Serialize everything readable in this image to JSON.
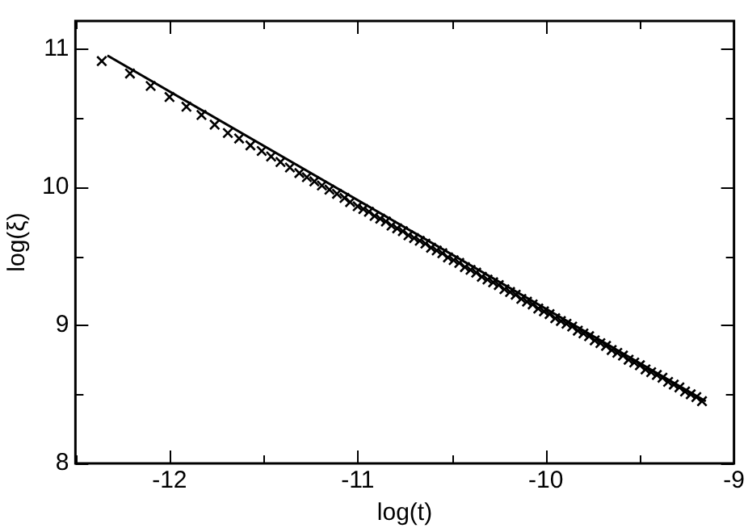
{
  "chart_data": {
    "type": "scatter",
    "xlabel": "log(t)",
    "ylabel": "log(ξ)",
    "xlim": [
      -12.5,
      -9
    ],
    "ylim": [
      8,
      11.2
    ],
    "xticks": [
      {
        "value": -12.5,
        "label": null
      },
      -12,
      {
        "value": -11.5,
        "label": null
      },
      -11,
      {
        "value": -10.5,
        "label": null
      },
      -10,
      {
        "value": -9.5,
        "label": null
      },
      -9
    ],
    "yticks": [
      8,
      {
        "value": 8.5,
        "label": null
      },
      9,
      {
        "value": 9.5,
        "label": null
      },
      10,
      {
        "value": 10.5,
        "label": null
      },
      11
    ],
    "grid": false,
    "legend": false,
    "series": [
      {
        "type": "scatter",
        "color": "#000000",
        "marker": "cross",
        "x": [
          -12.36,
          -12.21,
          -12.1,
          -12.0,
          -11.91,
          -11.83,
          -11.76,
          -11.69,
          -11.63,
          -11.57,
          -11.51,
          -11.46,
          -11.41,
          -11.36,
          -11.31,
          -11.27,
          -11.23,
          -11.19,
          -11.15,
          -11.11,
          -11.07,
          -11.04,
          -11.0,
          -10.97,
          -10.94,
          -10.91,
          -10.88,
          -10.85,
          -10.82,
          -10.79,
          -10.76,
          -10.73,
          -10.7,
          -10.67,
          -10.64,
          -10.61,
          -10.58,
          -10.55,
          -10.52,
          -10.49,
          -10.46,
          -10.43,
          -10.4,
          -10.37,
          -10.34,
          -10.31,
          -10.28,
          -10.25,
          -10.22,
          -10.19,
          -10.16,
          -10.13,
          -10.1,
          -10.07,
          -10.04,
          -10.01,
          -9.98,
          -9.95,
          -9.92,
          -9.89,
          -9.86,
          -9.83,
          -9.8,
          -9.77,
          -9.74,
          -9.71,
          -9.68,
          -9.65,
          -9.62,
          -9.59,
          -9.56,
          -9.53,
          -9.5,
          -9.47,
          -9.44,
          -9.41,
          -9.38,
          -9.35,
          -9.32,
          -9.29,
          -9.26,
          -9.23,
          -9.2,
          -9.17
        ],
        "values": [
          10.91,
          10.82,
          10.73,
          10.65,
          10.58,
          10.52,
          10.45,
          10.39,
          10.35,
          10.3,
          10.26,
          10.22,
          10.18,
          10.14,
          10.1,
          10.07,
          10.04,
          10.01,
          9.98,
          9.95,
          9.92,
          9.89,
          9.86,
          9.84,
          9.82,
          9.79,
          9.77,
          9.75,
          9.72,
          9.7,
          9.68,
          9.65,
          9.63,
          9.61,
          9.59,
          9.56,
          9.54,
          9.52,
          9.49,
          9.47,
          9.45,
          9.42,
          9.4,
          9.38,
          9.35,
          9.33,
          9.31,
          9.29,
          9.26,
          9.24,
          9.22,
          9.19,
          9.17,
          9.15,
          9.12,
          9.1,
          9.08,
          9.05,
          9.03,
          9.01,
          8.99,
          8.96,
          8.94,
          8.92,
          8.89,
          8.87,
          8.85,
          8.82,
          8.8,
          8.78,
          8.75,
          8.73,
          8.71,
          8.68,
          8.66,
          8.64,
          8.62,
          8.59,
          8.57,
          8.55,
          8.52,
          8.5,
          8.48,
          8.45
        ]
      },
      {
        "type": "line",
        "color": "#000000",
        "marker": "none",
        "line_style": "solid",
        "x": [
          -12.33,
          -9.15
        ],
        "values": [
          10.95,
          8.45
        ]
      }
    ]
  }
}
